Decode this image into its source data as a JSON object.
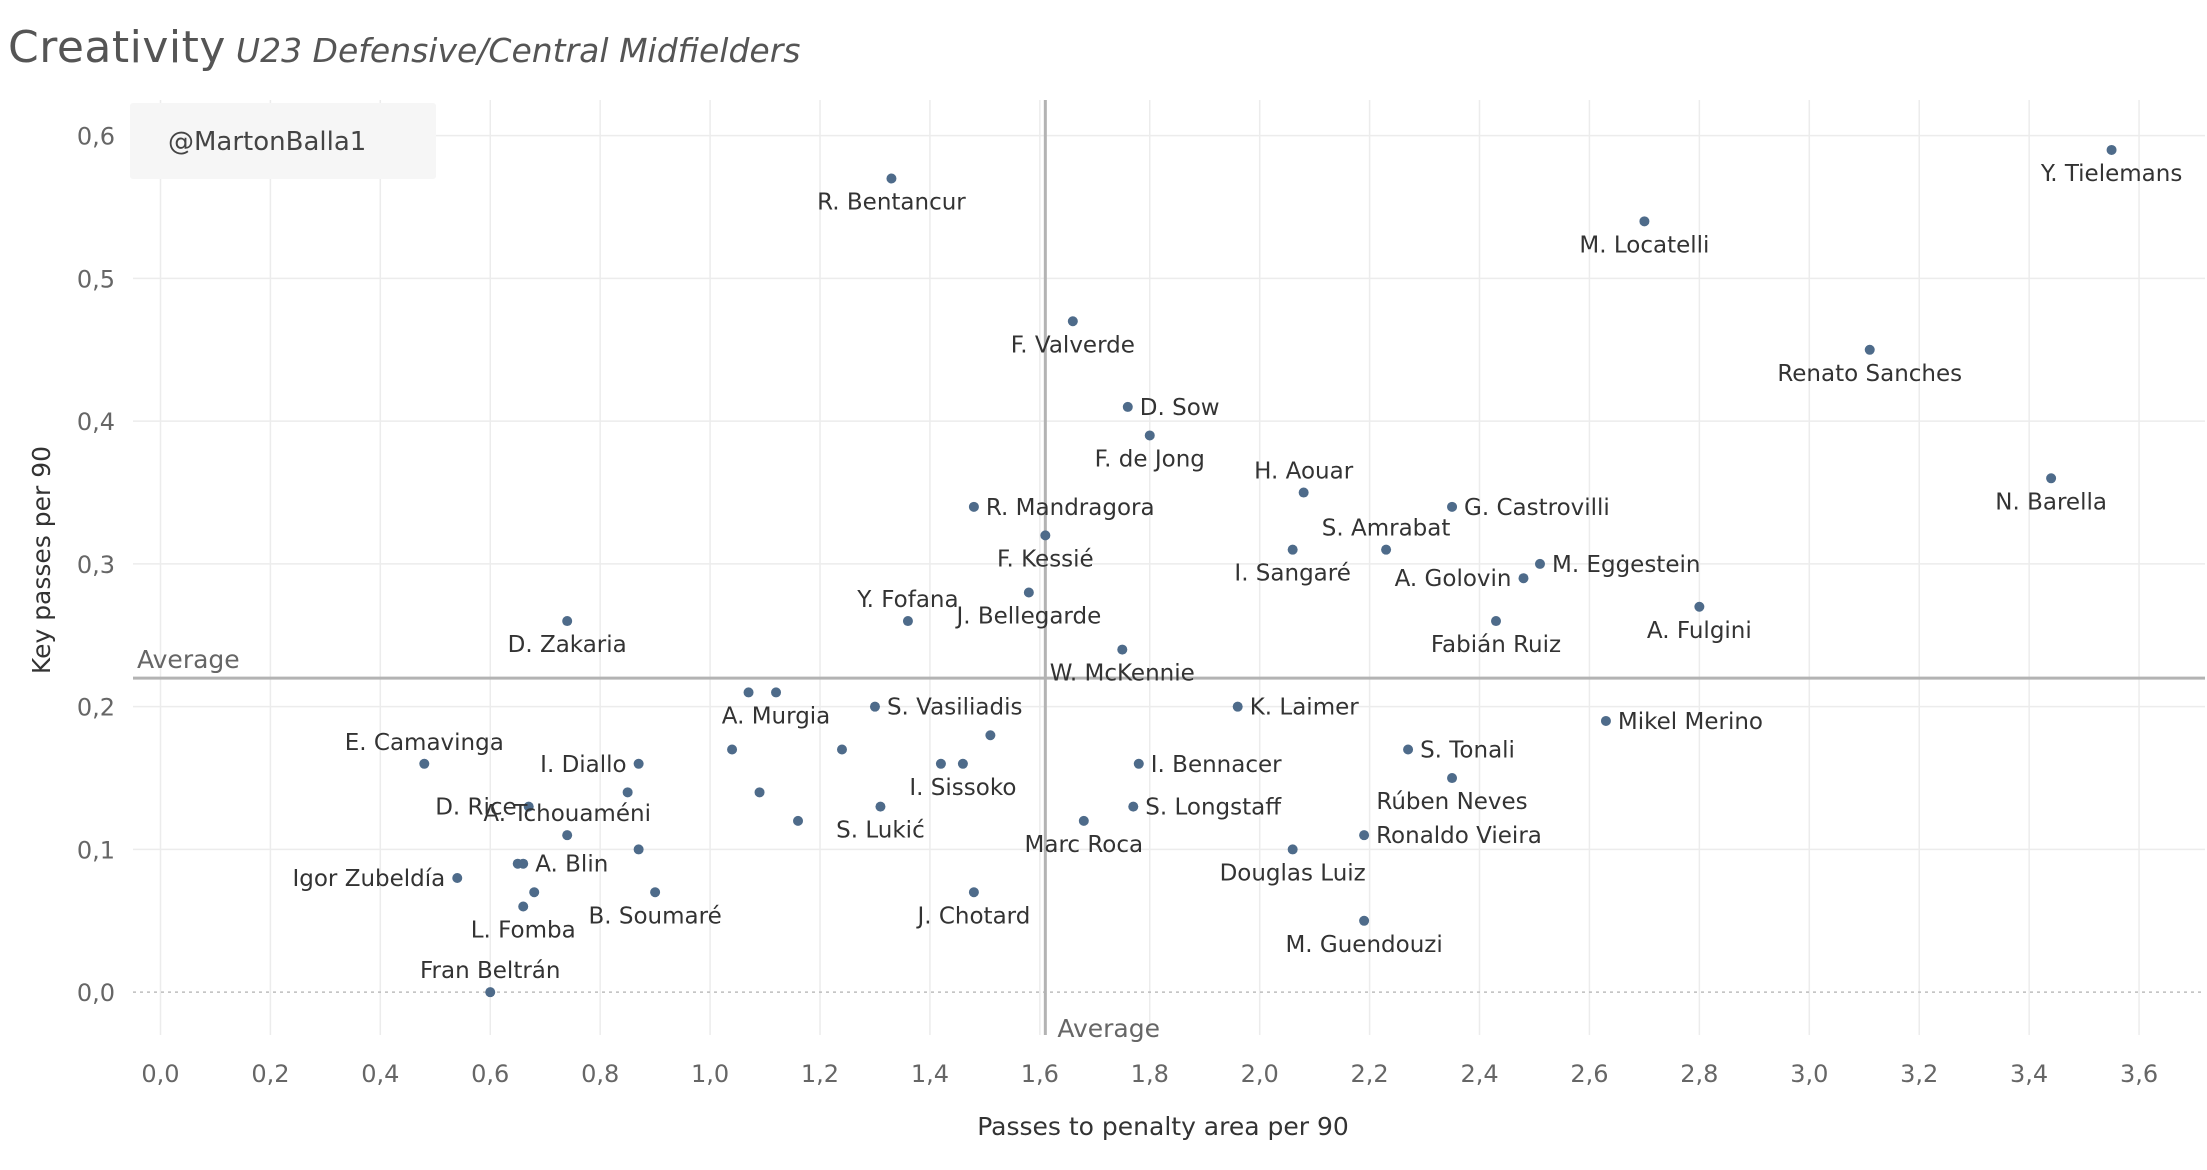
{
  "title": "Creativity",
  "subtitle": "U23 Defensive/Central Midfielders",
  "credit": "@MartonBalla1",
  "colors": {
    "point": "#4e6b8a",
    "grid": "#ececec",
    "reference": "#b3b3b3",
    "credit_bg": "#f6f6f6"
  },
  "chart_data": {
    "type": "scatter",
    "xlabel": "Passes to penalty area per 90",
    "ylabel": "Key passes per 90",
    "xlim": [
      -0.05,
      3.72
    ],
    "ylim": [
      -0.03,
      0.625
    ],
    "xticks": [
      0,
      0.2,
      0.4,
      0.6,
      0.8,
      1.0,
      1.2,
      1.4,
      1.6,
      1.8,
      2.0,
      2.2,
      2.4,
      2.6,
      2.8,
      3.0,
      3.2,
      3.4,
      3.6
    ],
    "xtick_labels": [
      "0,0",
      "0,2",
      "0,4",
      "0,6",
      "0,8",
      "1,0",
      "1,2",
      "1,4",
      "1,6",
      "1,8",
      "2,0",
      "2,2",
      "2,4",
      "2,6",
      "2,8",
      "3,0",
      "3,2",
      "3,4",
      "3,6"
    ],
    "yticks": [
      0,
      0.1,
      0.2,
      0.3,
      0.4,
      0.5,
      0.6
    ],
    "ytick_labels": [
      "0,0",
      "0,1",
      "0,2",
      "0,3",
      "0,4",
      "0,5",
      "0,6"
    ],
    "grid": true,
    "reference_lines": [
      {
        "axis": "x",
        "value": 1.61,
        "label": "Average"
      },
      {
        "axis": "y",
        "value": 0.22,
        "label": "Average"
      }
    ],
    "points": [
      {
        "x": 3.55,
        "y": 0.59,
        "label": "Y. Tielemans",
        "anchor": "middle",
        "pos": "below"
      },
      {
        "x": 1.33,
        "y": 0.57,
        "label": "R. Bentancur",
        "anchor": "middle",
        "pos": "below"
      },
      {
        "x": 2.7,
        "y": 0.54,
        "label": "M. Locatelli",
        "anchor": "middle",
        "pos": "below"
      },
      {
        "x": 1.66,
        "y": 0.47,
        "label": "F. Valverde",
        "anchor": "middle",
        "pos": "below"
      },
      {
        "x": 3.11,
        "y": 0.45,
        "label": "Renato Sanches",
        "anchor": "middle",
        "pos": "below"
      },
      {
        "x": 1.76,
        "y": 0.41,
        "label": "D. Sow",
        "anchor": "start",
        "pos": "right"
      },
      {
        "x": 1.8,
        "y": 0.39,
        "label": "F. de Jong",
        "anchor": "middle",
        "pos": "below"
      },
      {
        "x": 3.44,
        "y": 0.36,
        "label": "N. Barella",
        "anchor": "middle",
        "pos": "below"
      },
      {
        "x": 2.08,
        "y": 0.35,
        "label": "H. Aouar",
        "anchor": "middle",
        "pos": "above"
      },
      {
        "x": 1.48,
        "y": 0.34,
        "label": "R. Mandragora",
        "anchor": "start",
        "pos": "right"
      },
      {
        "x": 2.35,
        "y": 0.34,
        "label": "G. Castrovilli",
        "anchor": "start",
        "pos": "right"
      },
      {
        "x": 1.61,
        "y": 0.32,
        "label": "F. Kessié",
        "anchor": "middle",
        "pos": "below"
      },
      {
        "x": 2.06,
        "y": 0.31,
        "label": "I. Sangaré",
        "anchor": "middle",
        "pos": "below"
      },
      {
        "x": 2.23,
        "y": 0.31,
        "label": "S. Amrabat",
        "anchor": "middle",
        "pos": "above"
      },
      {
        "x": 2.51,
        "y": 0.3,
        "label": "M. Eggestein",
        "anchor": "start",
        "pos": "right"
      },
      {
        "x": 2.48,
        "y": 0.29,
        "label": "A. Golovin",
        "anchor": "end",
        "pos": "left"
      },
      {
        "x": 1.58,
        "y": 0.28,
        "label": "J. Bellegarde",
        "anchor": "middle",
        "pos": "below"
      },
      {
        "x": 2.8,
        "y": 0.27,
        "label": "A. Fulgini",
        "anchor": "middle",
        "pos": "below"
      },
      {
        "x": 1.36,
        "y": 0.26,
        "label": "Y. Fofana",
        "anchor": "middle",
        "pos": "above"
      },
      {
        "x": 0.74,
        "y": 0.26,
        "label": "D. Zakaria",
        "anchor": "middle",
        "pos": "below"
      },
      {
        "x": 2.43,
        "y": 0.26,
        "label": "Fabián Ruiz",
        "anchor": "middle",
        "pos": "below"
      },
      {
        "x": 1.75,
        "y": 0.24,
        "label": "W. McKennie",
        "anchor": "middle",
        "pos": "below"
      },
      {
        "x": 1.07,
        "y": 0.21,
        "label": "",
        "anchor": "middle",
        "pos": "below"
      },
      {
        "x": 1.12,
        "y": 0.21,
        "label": "A. Murgia",
        "anchor": "middle",
        "pos": "below"
      },
      {
        "x": 1.3,
        "y": 0.2,
        "label": "S. Vasiliadis",
        "anchor": "start",
        "pos": "right"
      },
      {
        "x": 1.96,
        "y": 0.2,
        "label": "K. Laimer",
        "anchor": "start",
        "pos": "right"
      },
      {
        "x": 2.63,
        "y": 0.19,
        "label": "Mikel Merino",
        "anchor": "start",
        "pos": "right"
      },
      {
        "x": 1.51,
        "y": 0.18,
        "label": "",
        "anchor": "middle",
        "pos": "below"
      },
      {
        "x": 1.04,
        "y": 0.17,
        "label": "",
        "anchor": "middle",
        "pos": "below"
      },
      {
        "x": 1.24,
        "y": 0.17,
        "label": "",
        "anchor": "middle",
        "pos": "below"
      },
      {
        "x": 2.27,
        "y": 0.17,
        "label": "S. Tonali",
        "anchor": "start",
        "pos": "right"
      },
      {
        "x": 0.48,
        "y": 0.16,
        "label": "E. Camavinga",
        "anchor": "middle",
        "pos": "above"
      },
      {
        "x": 0.87,
        "y": 0.16,
        "label": "I. Diallo",
        "anchor": "end",
        "pos": "left"
      },
      {
        "x": 1.42,
        "y": 0.16,
        "label": "",
        "anchor": "middle",
        "pos": "below"
      },
      {
        "x": 1.46,
        "y": 0.16,
        "label": "I. Sissoko",
        "anchor": "middle",
        "pos": "below"
      },
      {
        "x": 1.78,
        "y": 0.16,
        "label": "I. Bennacer",
        "anchor": "start",
        "pos": "right"
      },
      {
        "x": 2.35,
        "y": 0.15,
        "label": "Rúben Neves",
        "anchor": "middle",
        "pos": "below"
      },
      {
        "x": 0.85,
        "y": 0.14,
        "label": "",
        "anchor": "middle",
        "pos": "below"
      },
      {
        "x": 1.09,
        "y": 0.14,
        "label": "",
        "anchor": "middle",
        "pos": "below"
      },
      {
        "x": 0.67,
        "y": 0.13,
        "label": "D. Rice",
        "anchor": "end",
        "pos": "left"
      },
      {
        "x": 1.31,
        "y": 0.13,
        "label": "S. Lukić",
        "anchor": "middle",
        "pos": "below"
      },
      {
        "x": 1.77,
        "y": 0.13,
        "label": "S. Longstaff",
        "anchor": "start",
        "pos": "right"
      },
      {
        "x": 1.16,
        "y": 0.12,
        "label": "",
        "anchor": "middle",
        "pos": "below"
      },
      {
        "x": 1.68,
        "y": 0.12,
        "label": "Marc Roca",
        "anchor": "middle",
        "pos": "below"
      },
      {
        "x": 0.74,
        "y": 0.11,
        "label": "A. Tchouaméni",
        "anchor": "middle",
        "pos": "above"
      },
      {
        "x": 2.19,
        "y": 0.11,
        "label": "Ronaldo Vieira",
        "anchor": "start",
        "pos": "right"
      },
      {
        "x": 0.87,
        "y": 0.1,
        "label": "",
        "anchor": "middle",
        "pos": "below"
      },
      {
        "x": 2.06,
        "y": 0.1,
        "label": "Douglas Luiz",
        "anchor": "middle",
        "pos": "below"
      },
      {
        "x": 0.65,
        "y": 0.09,
        "label": "",
        "anchor": "middle",
        "pos": "below"
      },
      {
        "x": 0.66,
        "y": 0.09,
        "label": "A. Blin",
        "anchor": "start",
        "pos": "right"
      },
      {
        "x": 0.54,
        "y": 0.08,
        "label": "Igor Zubeldía",
        "anchor": "end",
        "pos": "left"
      },
      {
        "x": 0.68,
        "y": 0.07,
        "label": "",
        "anchor": "middle",
        "pos": "below"
      },
      {
        "x": 0.9,
        "y": 0.07,
        "label": "B. Soumaré",
        "anchor": "middle",
        "pos": "below"
      },
      {
        "x": 1.48,
        "y": 0.07,
        "label": "J. Chotard",
        "anchor": "middle",
        "pos": "below"
      },
      {
        "x": 0.66,
        "y": 0.06,
        "label": "L. Fomba",
        "anchor": "middle",
        "pos": "below"
      },
      {
        "x": 2.19,
        "y": 0.05,
        "label": "M. Guendouzi",
        "anchor": "middle",
        "pos": "below"
      },
      {
        "x": 0.6,
        "y": 0.0,
        "label": "Fran Beltrán",
        "anchor": "middle",
        "pos": "above"
      }
    ]
  }
}
